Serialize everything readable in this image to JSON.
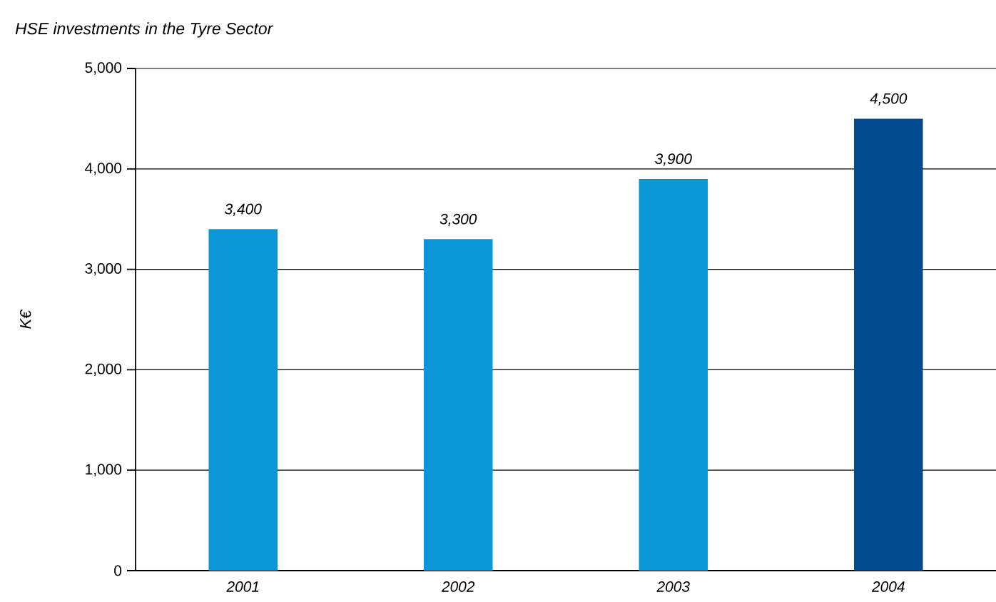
{
  "chart_data": {
    "type": "bar",
    "title": "HSE investments in the Tyre Sector",
    "ylabel": "K€",
    "categories": [
      "2001",
      "2002",
      "2003",
      "2004"
    ],
    "values": [
      3400,
      3300,
      3900,
      4500
    ],
    "colors": [
      "#0a96d7",
      "#0a96d7",
      "#0a96d7",
      "#004b8d"
    ],
    "value_labels": [
      "3,400",
      "3,300",
      "3,900",
      "4,500"
    ],
    "ylim": [
      0,
      5000
    ],
    "yticks": [
      {
        "value": 0,
        "label": "0"
      },
      {
        "value": 1000,
        "label": "1,000"
      },
      {
        "value": 2000,
        "label": "2,000"
      },
      {
        "value": 3000,
        "label": "3,000"
      },
      {
        "value": 4000,
        "label": "4,000"
      },
      {
        "value": 5000,
        "label": "5,000"
      }
    ],
    "grid": "y"
  }
}
